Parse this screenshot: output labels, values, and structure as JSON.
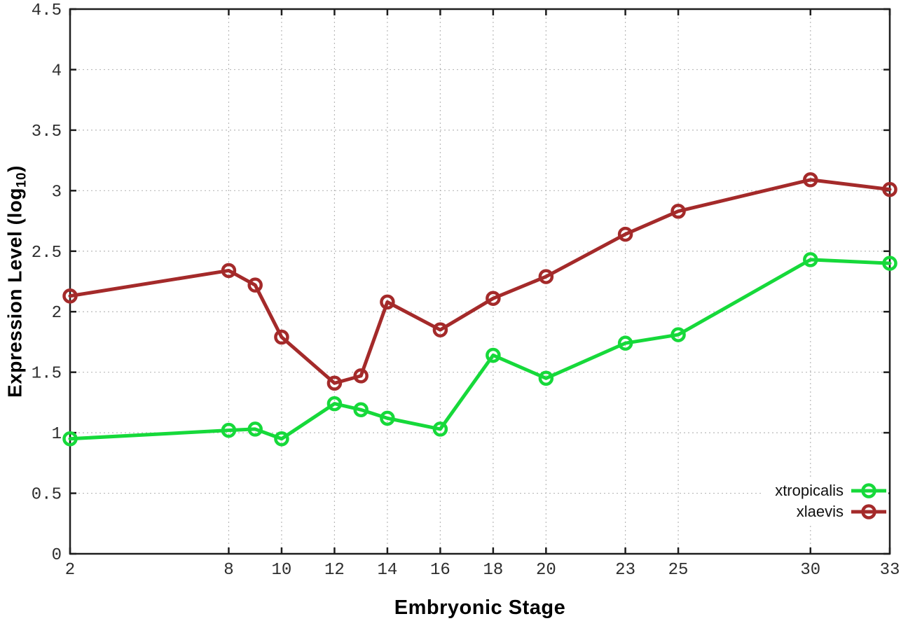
{
  "figure": {
    "background": "#ffffff",
    "xlabel": "Embryonic Stage",
    "ylabel": {
      "pre": "Expression Level (log",
      "sub": "10",
      "post": ")"
    }
  },
  "legend": {
    "position": "inside-bottom-right",
    "items": [
      {
        "label": "xtropicalis"
      },
      {
        "label": "xlaevis"
      }
    ]
  },
  "chart_data": {
    "type": "line",
    "title": "",
    "xlabel": "Embryonic Stage",
    "ylabel": "Expression Level (log10)",
    "x": [
      2,
      8,
      9,
      10,
      12,
      13,
      14,
      16,
      18,
      20,
      23,
      25,
      30,
      33
    ],
    "series": [
      {
        "name": "xtropicalis",
        "color": "#16d93a",
        "marker": "open-circle",
        "values": [
          0.95,
          1.02,
          1.03,
          0.95,
          1.24,
          1.19,
          1.12,
          1.03,
          1.64,
          1.45,
          1.74,
          1.81,
          2.43,
          2.4
        ]
      },
      {
        "name": "xlaevis",
        "color": "#a42a2a",
        "marker": "open-circle",
        "values": [
          2.13,
          2.34,
          2.22,
          1.79,
          1.41,
          1.47,
          2.08,
          1.85,
          2.11,
          2.29,
          2.64,
          2.83,
          3.09,
          3.01
        ]
      }
    ],
    "xticks": [
      2,
      8,
      10,
      12,
      14,
      16,
      18,
      20,
      23,
      25,
      30,
      33
    ],
    "yticks": [
      "0",
      "0.5",
      "1",
      "1.5",
      "2",
      "2.5",
      "3",
      "3.5",
      "4",
      "4.5"
    ],
    "xlim": [
      2,
      33
    ],
    "ylim": [
      0,
      4.5
    ],
    "grid": true,
    "grid_style": "dotted",
    "legend_position": "inside-bottom-right",
    "axis_color": "#1e1e1e",
    "grid_color": "#b9b9b9",
    "tick_label_color": "#2e2e2e"
  }
}
